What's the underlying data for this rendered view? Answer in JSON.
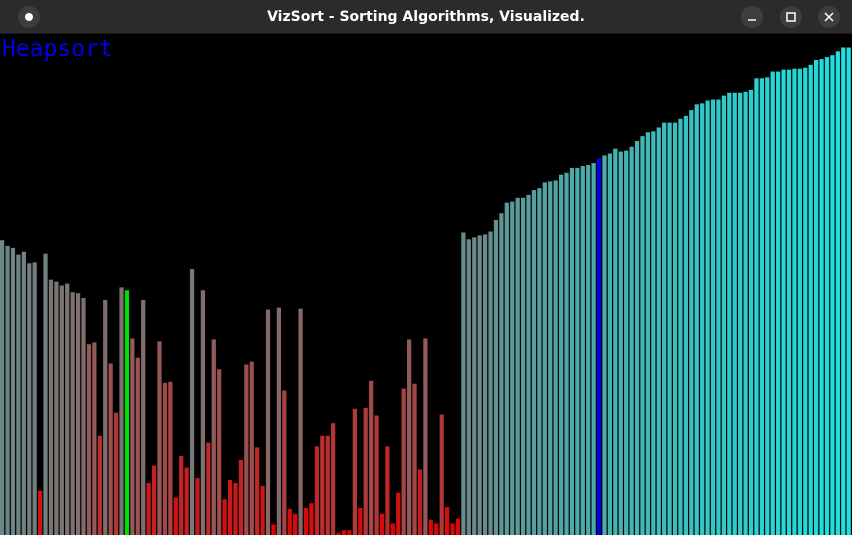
{
  "window": {
    "title": "VizSort - Sorting Algorithms, Visualized.",
    "controls": [
      "minimize-icon",
      "maximize-icon",
      "close-icon"
    ],
    "menu_icon": "circle-menu-icon"
  },
  "algorithm": "Heapsort",
  "colors": {
    "low": "#e00000",
    "high": "#1ee0e0",
    "compare_a": "#00e000",
    "compare_b": "#0000e0",
    "label": "#0000ee",
    "background": "#000000"
  },
  "chart_data": {
    "type": "bar",
    "values": [
      306,
      300,
      298,
      291,
      294,
      282,
      283,
      46,
      292,
      265,
      263,
      259,
      261,
      252,
      251,
      246,
      198,
      200,
      103,
      244,
      178,
      127,
      257,
      254,
      204,
      184,
      244,
      54,
      72,
      201,
      158,
      159,
      39,
      82,
      70,
      276,
      59,
      254,
      96,
      203,
      172,
      37,
      57,
      54,
      78,
      177,
      180,
      91,
      51,
      234,
      11,
      236,
      150,
      27,
      22,
      235,
      28,
      33,
      92,
      103,
      103,
      116,
      2,
      5,
      5,
      131,
      28,
      132,
      160,
      124,
      22,
      92,
      12,
      44,
      152,
      203,
      157,
      68,
      204,
      16,
      12,
      125,
      29,
      12,
      17,
      314,
      307,
      309,
      311,
      312,
      315,
      327,
      334,
      345,
      346,
      350,
      350,
      353,
      358,
      360,
      366,
      367,
      368,
      374,
      376,
      381,
      381,
      383,
      384,
      386,
      391,
      394,
      396,
      401,
      398,
      399,
      403,
      409,
      414,
      418,
      419,
      423,
      428,
      428,
      428,
      432,
      435,
      441,
      447,
      448,
      451,
      452,
      452,
      456,
      459,
      459,
      459,
      460,
      462,
      474,
      474,
      475,
      481,
      481,
      483,
      483,
      484,
      484,
      485,
      488,
      493,
      494,
      496,
      498,
      502,
      506,
      506
    ],
    "highlight_compare_a": 23,
    "highlight_compare_b": 110,
    "ylim": [
      0,
      520
    ]
  }
}
